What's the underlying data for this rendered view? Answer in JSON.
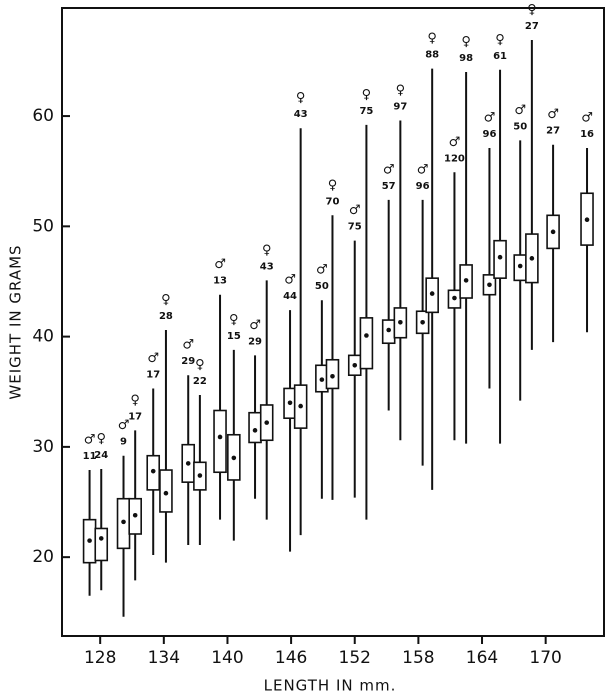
{
  "chart_data": {
    "type": "box",
    "xlabel": "LENGTH IN mm.",
    "ylabel": "WEIGHT IN GRAMS",
    "xlim": [
      124.4,
      175.5
    ],
    "xticks": [
      128,
      134,
      140,
      146,
      152,
      158,
      164,
      170
    ],
    "ylim": [
      12.85,
      69.8
    ],
    "yticks": [
      20,
      30,
      40,
      50,
      60
    ],
    "series": [
      {
        "name": "♂",
        "color": "#111111",
        "x": [
          127.0,
          130.2,
          133.0,
          136.3,
          139.3,
          142.6,
          145.9,
          148.9,
          152.0,
          155.2,
          158.4,
          161.4,
          164.7,
          167.6,
          170.7,
          173.9
        ],
        "low": [
          16.5,
          14.6,
          20.2,
          21.1,
          23.4,
          25.3,
          20.5,
          25.3,
          25.4,
          33.3,
          28.3,
          30.6,
          35.3,
          34.2,
          39.5,
          40.4
        ],
        "q1": [
          19.5,
          20.8,
          26.1,
          26.8,
          27.7,
          30.4,
          32.6,
          35.0,
          36.5,
          39.4,
          40.3,
          42.6,
          43.8,
          45.1,
          48.0,
          48.3
        ],
        "mid": [
          21.5,
          23.2,
          27.8,
          28.5,
          30.9,
          31.5,
          34.0,
          36.1,
          37.4,
          40.6,
          41.3,
          43.5,
          44.7,
          46.4,
          49.5,
          50.6
        ],
        "q3": [
          23.4,
          25.3,
          29.2,
          30.2,
          33.3,
          33.1,
          35.3,
          37.4,
          38.3,
          41.5,
          42.3,
          44.2,
          45.6,
          47.4,
          51.0,
          53.0
        ],
        "high": [
          27.9,
          29.2,
          35.3,
          36.5,
          43.8,
          38.3,
          42.4,
          43.3,
          48.7,
          52.4,
          52.4,
          54.9,
          57.1,
          57.8,
          57.4,
          57.1
        ],
        "n": [
          11,
          9,
          17,
          29,
          13,
          29,
          44,
          50,
          75,
          57,
          96,
          120,
          96,
          50,
          27,
          16
        ]
      },
      {
        "name": "♀",
        "color": "#111111",
        "x": [
          128.1,
          131.3,
          134.2,
          137.4,
          140.6,
          143.7,
          146.9,
          149.9,
          153.1,
          156.3,
          159.3,
          162.5,
          165.7,
          168.7
        ],
        "low": [
          17.0,
          17.9,
          19.5,
          21.1,
          21.5,
          23.4,
          22.0,
          25.2,
          23.4,
          30.6,
          26.1,
          30.3,
          30.3,
          38.8
        ],
        "q1": [
          19.7,
          22.1,
          24.1,
          26.1,
          27.0,
          30.6,
          31.7,
          35.3,
          37.1,
          39.9,
          42.2,
          43.5,
          45.3,
          44.9
        ],
        "mid": [
          21.7,
          23.8,
          25.8,
          27.4,
          29.0,
          32.2,
          33.7,
          36.4,
          40.1,
          41.3,
          43.9,
          45.1,
          47.2,
          47.1
        ],
        "q3": [
          22.6,
          25.3,
          27.9,
          28.6,
          31.1,
          33.8,
          35.6,
          37.9,
          41.7,
          42.6,
          45.3,
          46.5,
          48.7,
          49.3
        ],
        "high": [
          28.0,
          31.5,
          40.6,
          34.7,
          38.8,
          45.1,
          58.9,
          51.0,
          59.2,
          59.6,
          64.3,
          64.0,
          64.2,
          66.9
        ],
        "n": [
          24,
          17,
          28,
          22,
          15,
          43,
          43,
          70,
          75,
          97,
          88,
          98,
          61,
          27
        ]
      }
    ]
  }
}
